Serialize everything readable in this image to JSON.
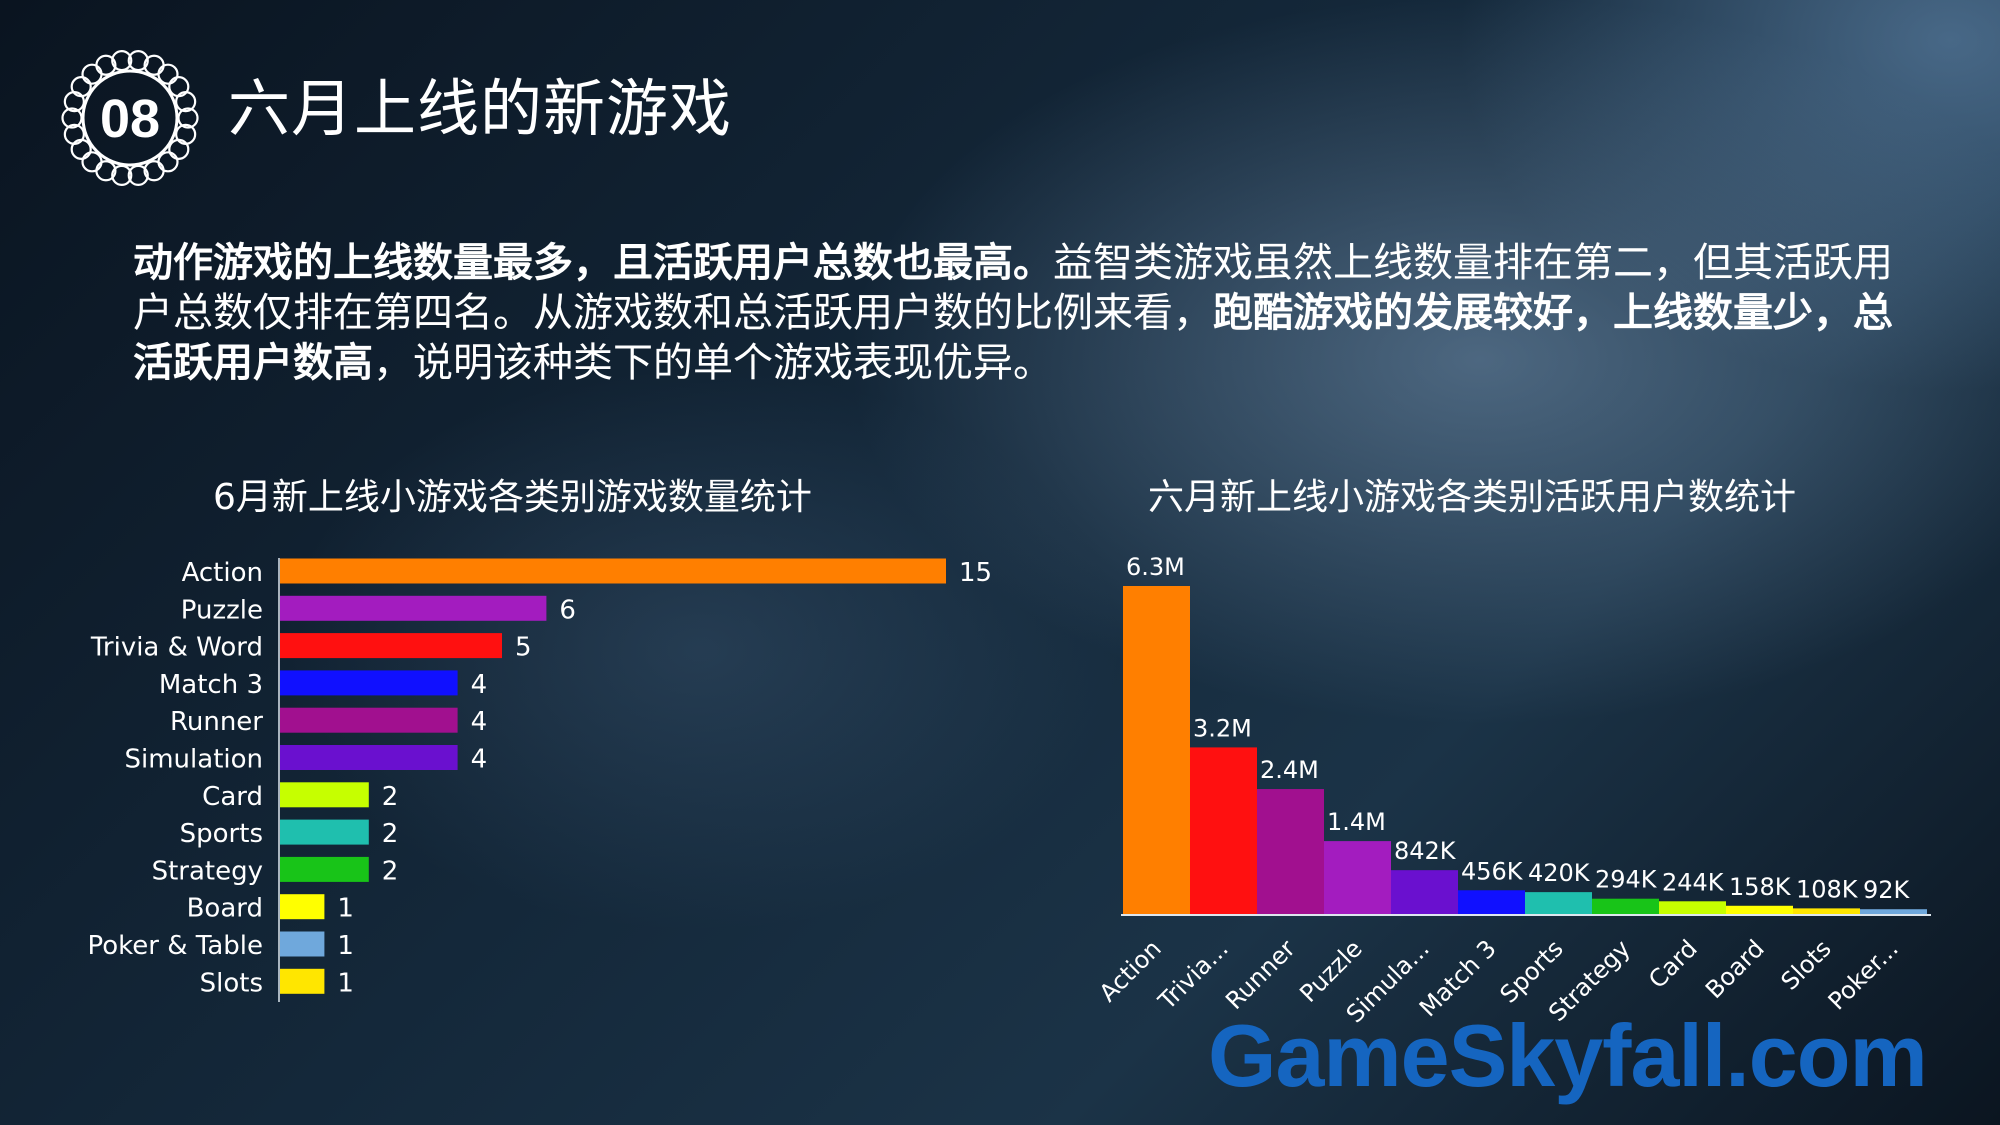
{
  "slide": {
    "badge_number": "08",
    "title": "六月上线的新游戏",
    "summary": [
      {
        "text": "动作游戏的上线数量最多，且活跃用户总数也最高。",
        "bold": true
      },
      {
        "text": "益智类游戏虽然上线数量排在第二，但其活跃用户总数仅排在第四名。从游戏数和总活跃用户数的比例来看，",
        "bold": false
      },
      {
        "text": "跑酷游戏的发展较好，上线数量少，总活跃用户数高",
        "bold": true
      },
      {
        "text": "，说明该种类下的单个游戏表现优异。",
        "bold": false
      }
    ],
    "watermark": "GameSkyfall.com"
  },
  "chart_data": [
    {
      "type": "bar",
      "orientation": "horizontal",
      "title": "6月新上线小游戏各类别游戏数量统计",
      "categories": [
        "Action",
        "Puzzle",
        "Trivia & Word",
        "Match 3",
        "Runner",
        "Simulation",
        "Card",
        "Sports",
        "Strategy",
        "Board",
        "Poker & Table",
        "Slots"
      ],
      "values": [
        15,
        6,
        5,
        4,
        4,
        4,
        2,
        2,
        2,
        1,
        1,
        1
      ],
      "data_labels": [
        "15",
        "6",
        "5",
        "4",
        "4",
        "4",
        "2",
        "2",
        "2",
        "1",
        "1",
        "1"
      ],
      "colors": [
        "#ff7f00",
        "#a31cbf",
        "#ff1010",
        "#1010ff",
        "#a1108f",
        "#6a10cf",
        "#c6ff00",
        "#1fbfae",
        "#18c418",
        "#ffff00",
        "#6fa8dc",
        "#ffe600"
      ],
      "xlim": [
        0,
        15
      ],
      "grid": false,
      "legend": "none"
    },
    {
      "type": "bar",
      "orientation": "vertical",
      "title": "六月新上线小游戏各类别活跃用户数统计",
      "categories": [
        "Action",
        "Trivia...",
        "Runner",
        "Puzzle",
        "Simula...",
        "Match 3",
        "Sports",
        "Strategy",
        "Card",
        "Board",
        "Slots",
        "Poker..."
      ],
      "values": [
        6300000,
        3200000,
        2400000,
        1400000,
        842000,
        456000,
        420000,
        294000,
        244000,
        158000,
        108000,
        92000
      ],
      "data_labels": [
        "6.3M",
        "3.2M",
        "2.4M",
        "1.4M",
        "842K",
        "456K",
        "420K",
        "294K",
        "244K",
        "158K",
        "108K",
        "92K"
      ],
      "colors": [
        "#ff7f00",
        "#ff1010",
        "#a1108f",
        "#a31cbf",
        "#6a10cf",
        "#1010ff",
        "#1fbfae",
        "#18c418",
        "#c6ff00",
        "#ffff00",
        "#ffe600",
        "#6fa8dc"
      ],
      "ylim": [
        0,
        6300000
      ],
      "grid": false,
      "legend": "none"
    }
  ]
}
